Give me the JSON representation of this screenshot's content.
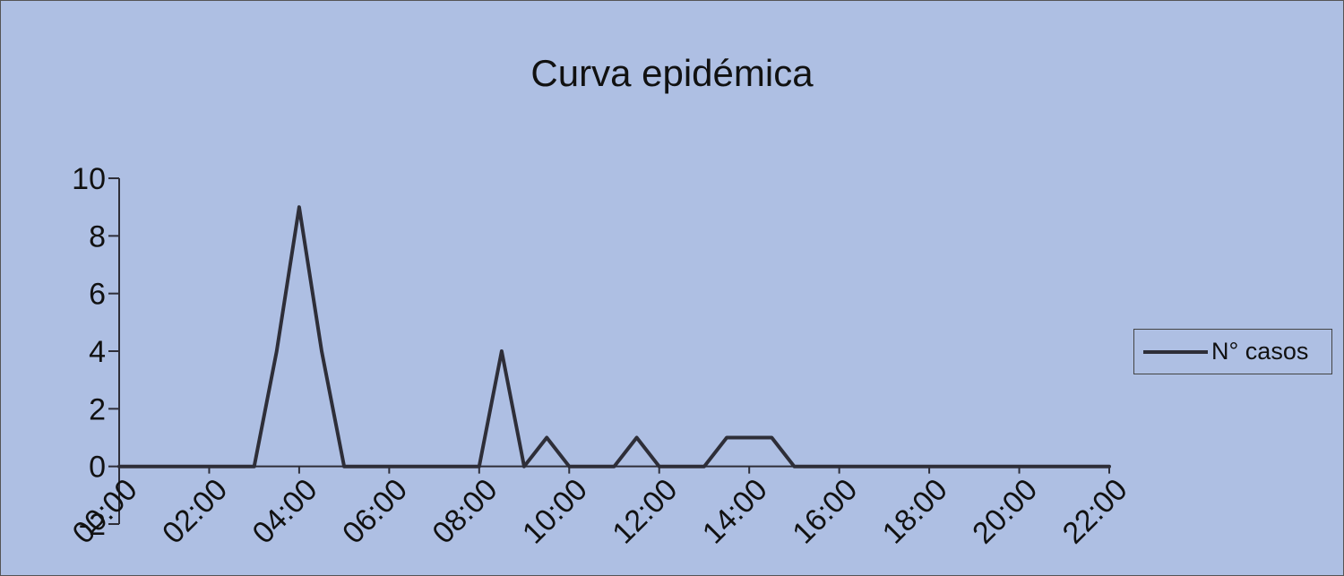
{
  "chart_data": {
    "type": "line",
    "title": "Curva epidémica",
    "xlabel": "",
    "ylabel": "",
    "ylim": [
      -2,
      10
    ],
    "yticks": [
      "10",
      "8",
      "6",
      "4",
      "2",
      "0",
      "-2"
    ],
    "x_ticks": [
      "00:00",
      "02:00",
      "04:00",
      "06:00",
      "08:00",
      "10:00",
      "12:00",
      "14:00",
      "16:00",
      "18:00",
      "20:00",
      "22:00"
    ],
    "legend_position": "right",
    "grid": false,
    "line_color": "#2e2e38",
    "series": [
      {
        "name": "N° casos",
        "x": [
          "00:00",
          "00:30",
          "01:00",
          "01:30",
          "02:00",
          "02:30",
          "03:00",
          "03:30",
          "04:00",
          "04:30",
          "05:00",
          "05:30",
          "06:00",
          "06:30",
          "07:00",
          "07:30",
          "08:00",
          "08:30",
          "09:00",
          "09:30",
          "10:00",
          "10:30",
          "11:00",
          "11:30",
          "12:00",
          "12:30",
          "13:00",
          "13:30",
          "14:00",
          "14:30",
          "15:00",
          "15:30",
          "16:00",
          "16:30",
          "17:00",
          "17:30",
          "18:00",
          "18:30",
          "19:00",
          "19:30",
          "20:00",
          "20:30",
          "21:00",
          "21:30",
          "22:00"
        ],
        "values": [
          0,
          0,
          0,
          0,
          0,
          0,
          0,
          4,
          9,
          4,
          0,
          0,
          0,
          0,
          0,
          0,
          0,
          4,
          0,
          1,
          0,
          0,
          0,
          1,
          0,
          0,
          0,
          1,
          1,
          1,
          0,
          0,
          0,
          0,
          0,
          0,
          0,
          0,
          0,
          0,
          0,
          0,
          0,
          0,
          0
        ]
      }
    ]
  }
}
